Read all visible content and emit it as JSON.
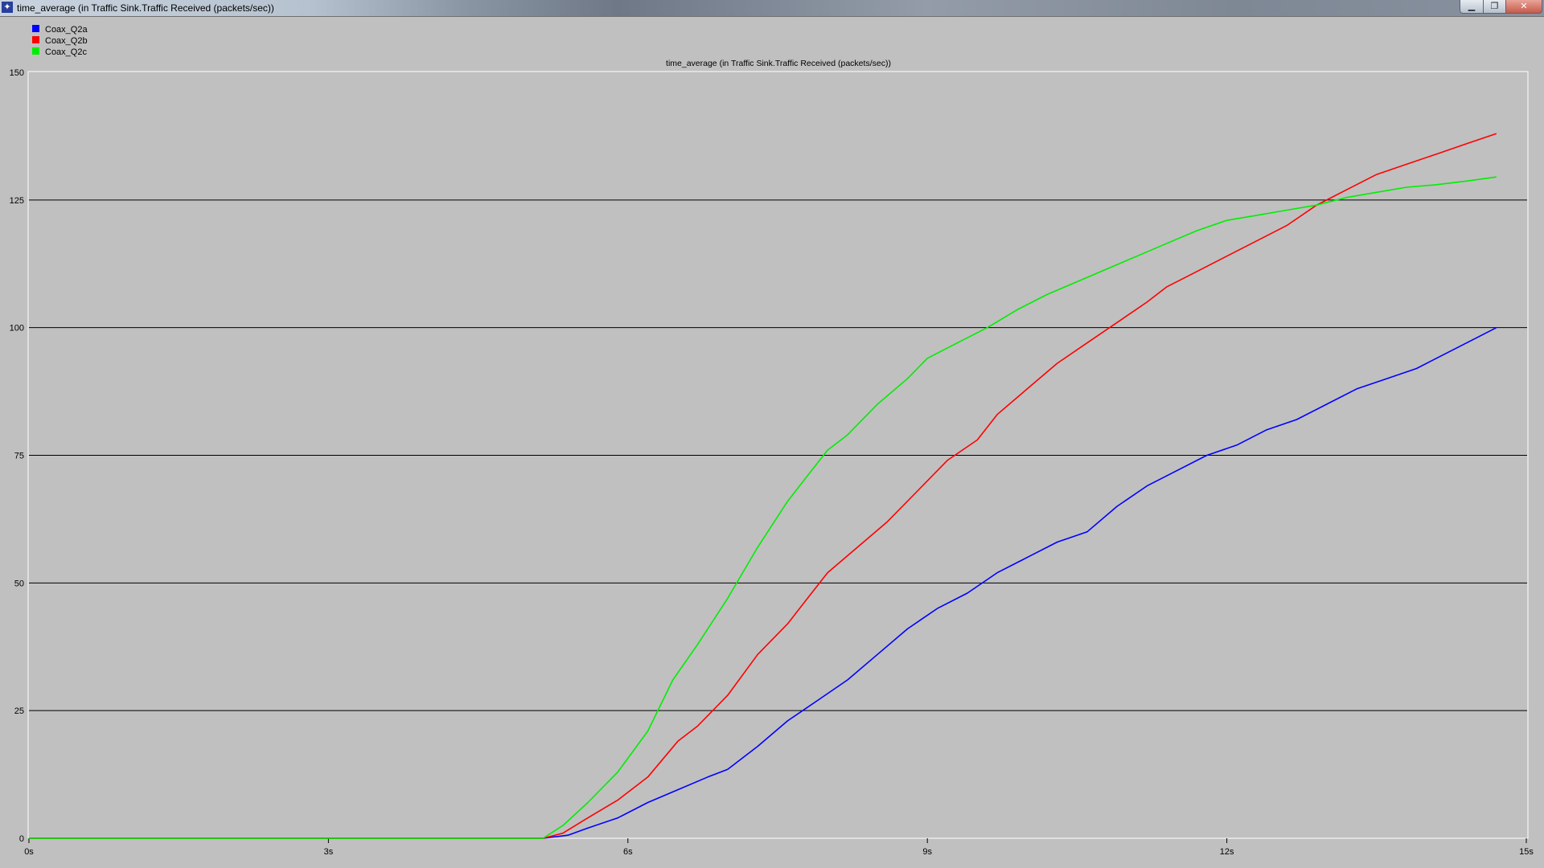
{
  "window": {
    "title": "time_average (in Traffic Sink.Traffic Received (packets/sec))",
    "icon": "app-icon",
    "buttons": {
      "minimize": "minimize-icon",
      "maximize": "maximize-icon",
      "close": "close-icon"
    }
  },
  "chart_data": {
    "type": "line",
    "title": "time_average (in Traffic Sink.Traffic Received (packets/sec))",
    "xlabel": "",
    "ylabel": "",
    "xlim": [
      0,
      15
    ],
    "ylim": [
      0,
      150
    ],
    "x_ticks": [
      0,
      3,
      6,
      9,
      12,
      15
    ],
    "x_tick_labels": [
      "0s",
      "3s",
      "6s",
      "9s",
      "12s",
      "15s"
    ],
    "y_ticks": [
      0,
      25,
      50,
      75,
      100,
      125,
      150
    ],
    "y_tick_labels": [
      "0",
      "25",
      "50",
      "75",
      "100",
      "125",
      "150"
    ],
    "grid": "horizontal",
    "legend_position": "top-left",
    "background": "#c0c0c0",
    "series": [
      {
        "name": "Coax_Q2a",
        "color": "#0000ff",
        "x": [
          0,
          5.15,
          5.4,
          5.6,
          5.9,
          6.2,
          6.5,
          6.8,
          7.0,
          7.3,
          7.6,
          7.9,
          8.2,
          8.5,
          8.8,
          9.1,
          9.4,
          9.7,
          10.0,
          10.3,
          10.6,
          10.9,
          11.2,
          11.5,
          11.8,
          12.1,
          12.4,
          12.7,
          13.0,
          13.3,
          13.6,
          13.9,
          14.2,
          14.5,
          14.7
        ],
        "y": [
          0,
          0,
          0.6,
          2,
          4,
          7,
          9.5,
          12,
          13.5,
          18,
          23,
          27,
          31,
          36,
          41,
          45,
          48,
          52,
          55,
          58,
          60,
          65,
          69,
          72,
          75,
          77,
          80,
          82,
          85,
          88,
          90,
          92,
          95,
          98,
          100
        ]
      },
      {
        "name": "Coax_Q2b",
        "color": "#ff0000",
        "x": [
          0,
          5.15,
          5.35,
          5.6,
          5.9,
          6.2,
          6.5,
          6.7,
          7.0,
          7.3,
          7.6,
          7.8,
          8.0,
          8.3,
          8.6,
          8.9,
          9.2,
          9.5,
          9.7,
          10.0,
          10.3,
          10.6,
          10.9,
          11.2,
          11.4,
          11.7,
          12.0,
          12.3,
          12.6,
          12.9,
          13.2,
          13.5,
          13.8,
          14.1,
          14.4,
          14.7
        ],
        "y": [
          0,
          0,
          1,
          4,
          7.5,
          12,
          19,
          22,
          28,
          36,
          42,
          47,
          52,
          57,
          62,
          68,
          74,
          78,
          83,
          88,
          93,
          97,
          101,
          105,
          108,
          111,
          114,
          117,
          120,
          124,
          127,
          130,
          132,
          134,
          136,
          138
        ]
      },
      {
        "name": "Coax_Q2c",
        "color": "#00ee00",
        "x": [
          0,
          5.15,
          5.35,
          5.6,
          5.9,
          6.2,
          6.45,
          6.7,
          7.0,
          7.3,
          7.6,
          7.8,
          8.0,
          8.2,
          8.5,
          8.8,
          9.0,
          9.3,
          9.6,
          9.9,
          10.2,
          10.5,
          10.8,
          11.1,
          11.4,
          11.7,
          12.0,
          12.3,
          12.6,
          12.9,
          13.2,
          13.5,
          13.8,
          14.1,
          14.4,
          14.7
        ],
        "y": [
          0,
          0,
          2.5,
          7,
          13,
          21,
          31,
          38,
          47,
          57,
          66,
          71,
          76,
          79,
          85,
          90,
          94,
          97,
          100,
          103.5,
          106.5,
          109,
          111.5,
          114,
          116.5,
          119,
          121,
          122,
          123,
          124,
          125.5,
          126.5,
          127.5,
          128,
          128.7,
          129.5
        ]
      }
    ]
  }
}
